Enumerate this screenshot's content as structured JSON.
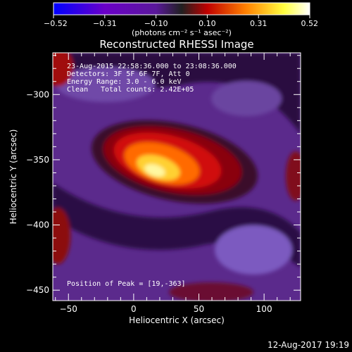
{
  "chart_data": {
    "type": "heatmap",
    "title": "Reconstructed RHESSI Image",
    "xlabel": "Heliocentric X (arcsec)",
    "ylabel": "Heliocentric Y (arcsec)",
    "xlim": [
      -62,
      128
    ],
    "ylim": [
      -458,
      -268
    ],
    "x_ticks": [
      -50,
      0,
      50,
      100
    ],
    "y_ticks": [
      -300,
      -350,
      -400,
      -450
    ],
    "colorbar": {
      "min": -0.52,
      "max": 0.52,
      "ticks": [
        "-0.52",
        "-0.31",
        "-0.10",
        "0.10",
        "0.31",
        "0.52"
      ],
      "units": "(photons cm⁻² s⁻¹ asec⁻²)",
      "colors": [
        "#0000ff",
        "#6a00c8",
        "#5a189a",
        "#202020",
        "#c00000",
        "#ff8000",
        "#ffff40",
        "#ffffff"
      ]
    },
    "annotations": {
      "time_range": "23-Aug-2015 22:58:36.000 to 23:08:36.000",
      "detectors": "Detectors: 3F 5F 6F 7F, Att 0",
      "energy": "Energy Range: 3.0 - 6.0 keV",
      "algorithm": "Clean",
      "counts": "Total counts: 2.42E+05",
      "peak": "Position of Peak = [19,-363]"
    },
    "peak": {
      "x": 19,
      "y": -363
    },
    "timestamp": "12-Aug-2017 19:19"
  }
}
